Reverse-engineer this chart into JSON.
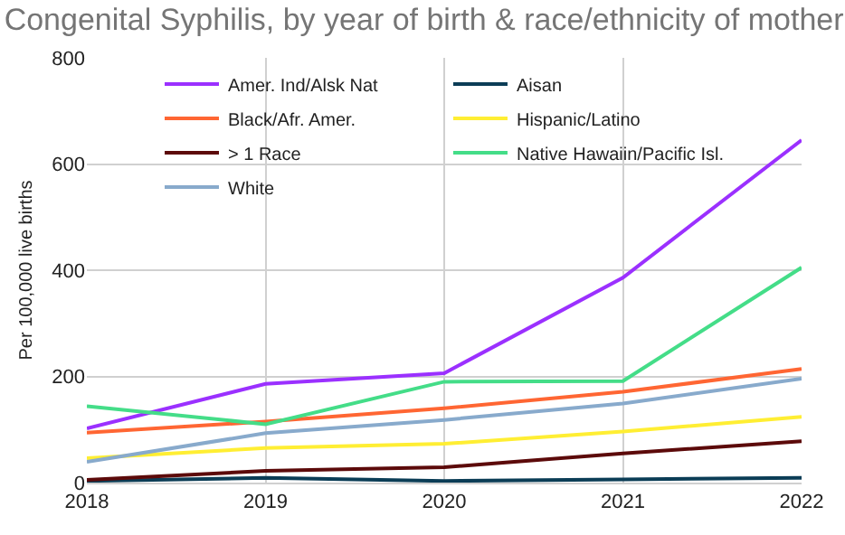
{
  "chart_data": {
    "type": "line",
    "title": "Congenital Syphilis, by year of birth & race/ethnicity of mother",
    "ylabel": "Per 100,000 live births",
    "x": [
      2018,
      2019,
      2020,
      2021,
      2022
    ],
    "xlim": [
      2018,
      2022
    ],
    "xticks": [
      2018,
      2019,
      2020,
      2021,
      2022
    ],
    "ylim": [
      0,
      800
    ],
    "yticks": [
      0,
      200,
      400,
      600,
      800
    ],
    "grid": true,
    "legend": "top",
    "marker": "none",
    "line_style": "solid",
    "series": [
      {
        "name": "Amer. Ind/Alsk Nat",
        "color": "#9b30ff",
        "values": [
          102,
          186,
          206,
          386,
          645
        ]
      },
      {
        "name": "Aisan",
        "color": "#0b3d56",
        "values": [
          3,
          9,
          3,
          6,
          9
        ]
      },
      {
        "name": "Black/Afr. Amer.",
        "color": "#ff6633",
        "values": [
          94,
          115,
          140,
          171,
          214
        ]
      },
      {
        "name": "Hispanic/Latino",
        "color": "#ffee33",
        "values": [
          46,
          65,
          73,
          96,
          124
        ]
      },
      {
        "name": "> 1 Race",
        "color": "#5c0a0a",
        "values": [
          5,
          22,
          29,
          55,
          78
        ]
      },
      {
        "name": "Native Hawaiin/Pacific Isl.",
        "color": "#44dd88",
        "values": [
          144,
          110,
          190,
          191,
          405
        ]
      },
      {
        "name": "White",
        "color": "#88aacc",
        "values": [
          39,
          93,
          118,
          149,
          196
        ]
      }
    ]
  }
}
